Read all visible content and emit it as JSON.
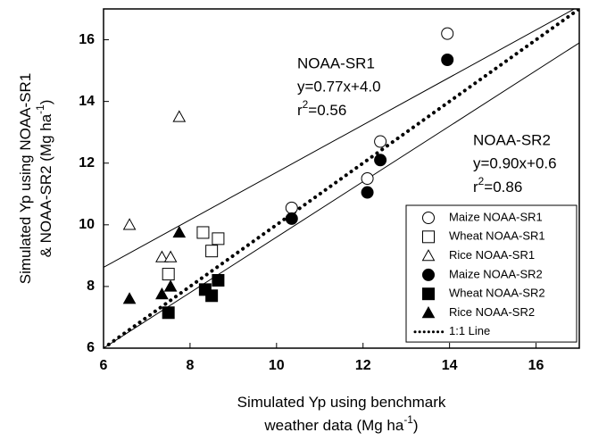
{
  "chart_data": {
    "type": "scatter",
    "x_label": [
      {
        "text": "Simulated Yp using benchmark"
      },
      {
        "text": "weather data (Mg ha",
        "sup": "-1",
        "end": ")"
      }
    ],
    "y_label": [
      {
        "text": "Simulated Yp using NOAA-SR1"
      },
      {
        "text": "& NOAA-SR2 (Mg ha",
        "sup": "-1",
        "end": ")"
      }
    ],
    "xlim": [
      6,
      17
    ],
    "ylim": [
      6,
      17
    ],
    "xticks": [
      6,
      8,
      10,
      12,
      14,
      16
    ],
    "yticks": [
      6,
      8,
      10,
      12,
      14,
      16
    ],
    "series": [
      {
        "name": "Maize NOAA-SR1",
        "marker": "circle",
        "filled": false,
        "color": "#000000",
        "x": [
          10.35,
          12.1,
          12.4,
          13.95
        ],
        "values": [
          10.55,
          11.5,
          12.7,
          16.2
        ]
      },
      {
        "name": "Wheat NOAA-SR1",
        "marker": "square",
        "filled": false,
        "color": "#000000",
        "x": [
          7.5,
          8.3,
          8.5,
          8.65
        ],
        "values": [
          8.4,
          9.75,
          9.15,
          9.55
        ]
      },
      {
        "name": "Rice NOAA-SR1",
        "marker": "triangle",
        "filled": false,
        "color": "#000000",
        "x": [
          6.6,
          7.35,
          7.55,
          7.75
        ],
        "values": [
          10.0,
          8.95,
          8.95,
          13.5
        ]
      },
      {
        "name": "Maize NOAA-SR2",
        "marker": "circle",
        "filled": true,
        "color": "#000000",
        "x": [
          10.35,
          12.1,
          12.4,
          13.95
        ],
        "values": [
          10.2,
          11.05,
          12.1,
          15.35
        ]
      },
      {
        "name": "Wheat NOAA-SR2",
        "marker": "square",
        "filled": true,
        "color": "#000000",
        "x": [
          7.5,
          8.35,
          8.5,
          8.65
        ],
        "values": [
          7.15,
          7.9,
          7.7,
          8.2
        ]
      },
      {
        "name": "Rice NOAA-SR2",
        "marker": "triangle",
        "filled": true,
        "color": "#000000",
        "x": [
          6.6,
          7.35,
          7.55,
          7.75
        ],
        "values": [
          7.6,
          7.75,
          8.0,
          9.75
        ]
      }
    ],
    "identity_line": {
      "name": "1:1 Line",
      "slope": 1,
      "intercept": 0
    },
    "fits": [
      {
        "slope": 0.77,
        "intercept": 4.0,
        "label": "NOAA-SR1",
        "equation": "y=0.77x+4.0",
        "r2": {
          "text": "r",
          "sup": "2",
          "end": "=0.56"
        }
      },
      {
        "slope": 0.9,
        "intercept": 0.6,
        "label": "NOAA-SR2",
        "equation": "y=0.90x+0.6",
        "r2": {
          "text": "r",
          "sup": "2",
          "end": "=0.86"
        }
      }
    ],
    "legend": "lower right"
  }
}
